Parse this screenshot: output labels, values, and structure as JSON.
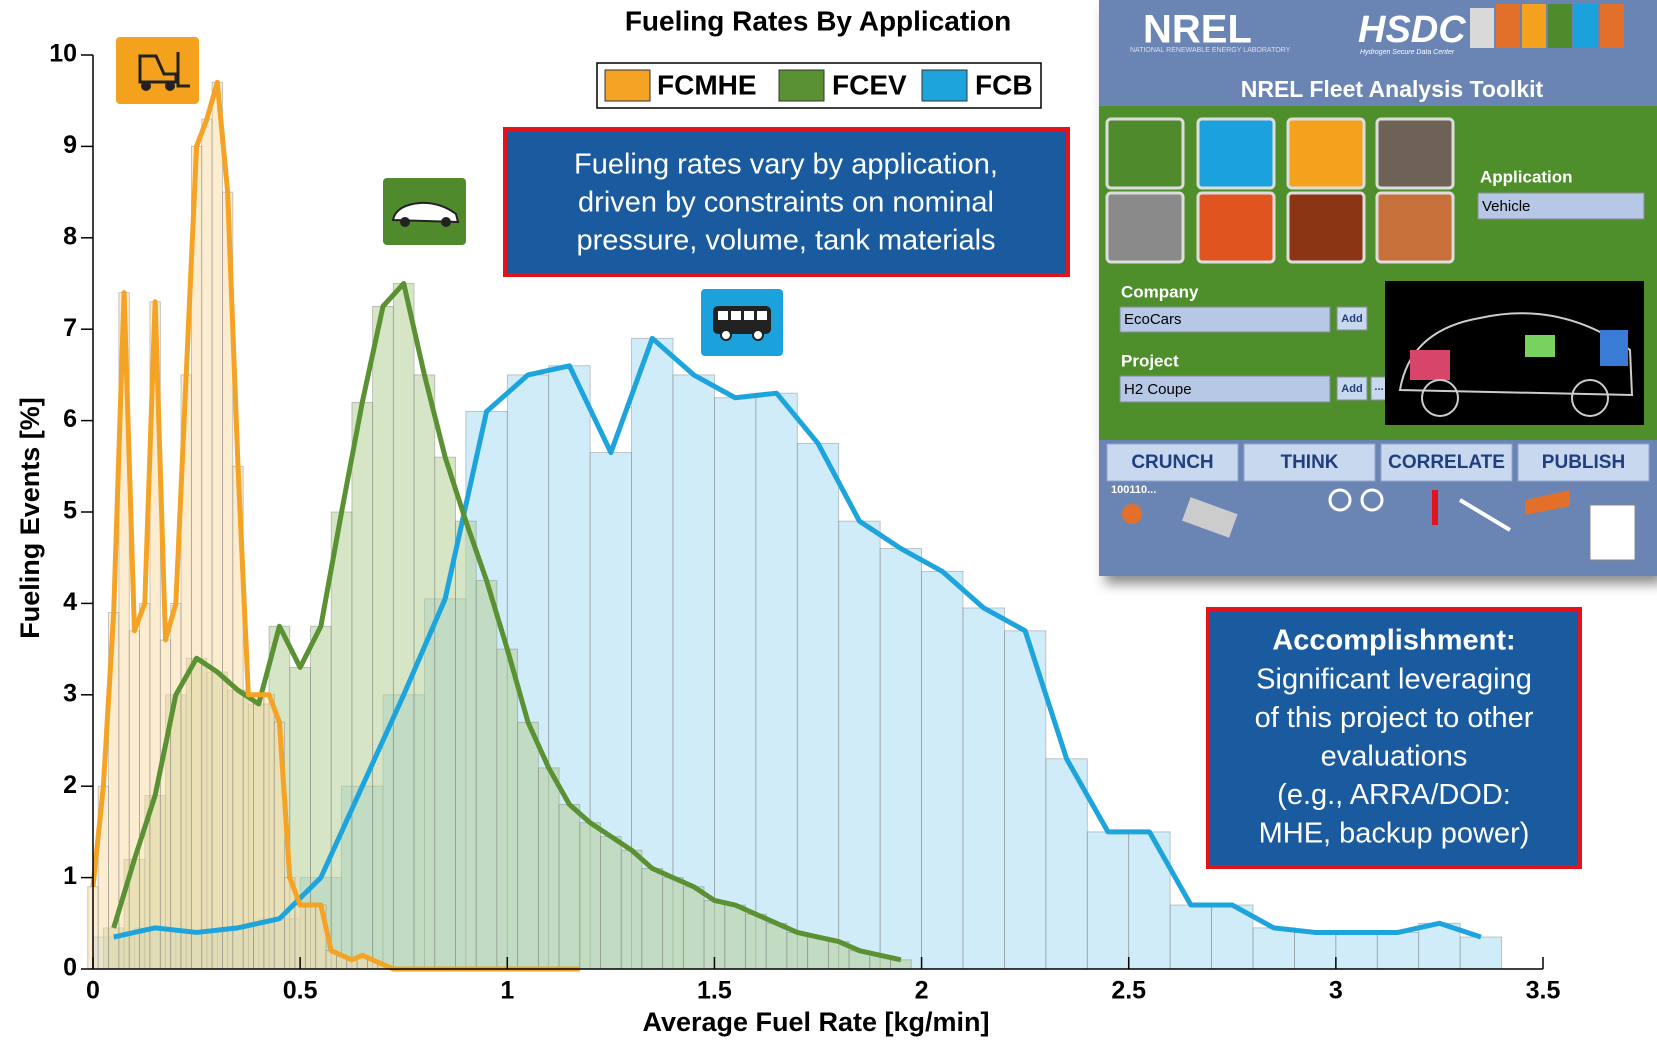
{
  "chart_data": {
    "type": "histogram-line",
    "title": "Fueling Rates By Application",
    "x_label": "Average Fuel Rate [kg/min]",
    "y_label": "Fueling Events [%]",
    "xlim": [
      0,
      3.5
    ],
    "ylim": [
      0,
      10
    ],
    "xticks": [
      0,
      0.5,
      1,
      1.5,
      2,
      2.5,
      3,
      3.5
    ],
    "yticks": [
      0,
      1,
      2,
      3,
      4,
      5,
      6,
      7,
      8,
      9,
      10
    ],
    "grid": false,
    "legend": "upper center",
    "series": [
      {
        "name": "FCB",
        "color": "#1ea4dc",
        "bar_color": "#a9dcf3",
        "x": [
          0.05,
          0.15,
          0.25,
          0.35,
          0.45,
          0.55,
          0.65,
          0.75,
          0.85,
          0.95,
          1.05,
          1.15,
          1.25,
          1.35,
          1.45,
          1.55,
          1.65,
          1.75,
          1.85,
          1.95,
          2.05,
          2.15,
          2.25,
          2.35,
          2.45,
          2.55,
          2.65,
          2.75,
          2.85,
          2.95,
          3.05,
          3.15,
          3.25,
          3.35
        ],
        "values": [
          0.35,
          0.45,
          0.4,
          0.45,
          0.55,
          1.0,
          2.0,
          3.0,
          4.05,
          6.1,
          6.5,
          6.6,
          5.65,
          6.9,
          6.5,
          6.25,
          6.3,
          5.75,
          4.9,
          4.6,
          4.35,
          3.95,
          3.7,
          2.3,
          1.5,
          1.5,
          0.7,
          0.7,
          0.45,
          0.4,
          0.4,
          0.4,
          0.5,
          0.35
        ]
      },
      {
        "name": "FCEV",
        "color": "#5a9132",
        "bar_color": "#b5cf98",
        "x": [
          0.05,
          0.1,
          0.15,
          0.2,
          0.25,
          0.3,
          0.35,
          0.4,
          0.45,
          0.5,
          0.55,
          0.6,
          0.65,
          0.7,
          0.75,
          0.8,
          0.85,
          0.9,
          0.95,
          1.0,
          1.05,
          1.1,
          1.15,
          1.2,
          1.25,
          1.3,
          1.35,
          1.4,
          1.45,
          1.5,
          1.55,
          1.6,
          1.65,
          1.7,
          1.75,
          1.8,
          1.85,
          1.9,
          1.95
        ],
        "values": [
          0.45,
          1.2,
          1.9,
          3.0,
          3.4,
          3.25,
          3.05,
          2.9,
          3.75,
          3.3,
          3.75,
          5.0,
          6.2,
          7.25,
          7.5,
          6.5,
          5.6,
          4.9,
          4.25,
          3.5,
          2.7,
          2.2,
          1.8,
          1.6,
          1.45,
          1.3,
          1.1,
          1.0,
          0.9,
          0.75,
          0.7,
          0.6,
          0.5,
          0.4,
          0.35,
          0.3,
          0.2,
          0.15,
          0.1
        ]
      },
      {
        "name": "FCMHE",
        "color": "#f4a324",
        "bar_color": "#f9dcaa",
        "x": [
          0,
          0.025,
          0.05,
          0.075,
          0.1,
          0.125,
          0.15,
          0.175,
          0.2,
          0.225,
          0.25,
          0.275,
          0.3,
          0.325,
          0.35,
          0.375,
          0.4,
          0.425,
          0.45,
          0.475,
          0.5,
          0.525,
          0.55,
          0.575,
          0.6,
          0.625,
          0.65,
          0.675,
          0.7,
          0.725,
          0.75,
          0.775,
          0.8,
          0.825,
          0.85,
          0.875,
          0.9,
          0.925,
          0.95,
          0.975,
          1.0,
          1.025,
          1.05,
          1.075,
          1.1,
          1.125,
          1.15,
          1.175
        ],
        "values": [
          0.9,
          2.0,
          3.9,
          7.4,
          3.7,
          4.0,
          7.3,
          3.6,
          4.0,
          6.5,
          9.0,
          9.3,
          9.7,
          8.5,
          5.5,
          3.0,
          3.0,
          3.0,
          2.7,
          1.0,
          0.7,
          0.7,
          0.7,
          0.2,
          0.15,
          0.1,
          0.15,
          0.1,
          0.05,
          0,
          0,
          0,
          0,
          0,
          0,
          0,
          0,
          0,
          0,
          0,
          0,
          0,
          0,
          0,
          0,
          0,
          0,
          0
        ]
      }
    ],
    "annotations": [
      {
        "lines": [
          "Fueling rates vary by application,",
          "driven by constraints on nominal",
          "pressure, volume, tank materials"
        ]
      },
      {
        "heading": "Accomplishment:",
        "lines": [
          "Significant leveraging",
          "of this project to other",
          "evaluations",
          "(e.g., ARRA/DOD:",
          "MHE, backup power)"
        ]
      }
    ]
  },
  "panel": {
    "logo": "NREL",
    "logo_subtitle": "NATIONAL RENEWABLE ENERGY LABORATORY",
    "hsdc": "HSDC",
    "hsdc_subtitle": "Hydrogen Secure Data Center",
    "title": "NREL Fleet Analysis Toolkit",
    "application_label": "Application",
    "application_value": "Vehicle",
    "company_label": "Company",
    "company_value": "EcoCars",
    "project_label": "Project",
    "project_value": "H2 Coupe",
    "add": "Add",
    "more": "...",
    "buttons": [
      "CRUNCH",
      "THINK",
      "CORRELATE",
      "PUBLISH"
    ],
    "binary": "100110..."
  }
}
